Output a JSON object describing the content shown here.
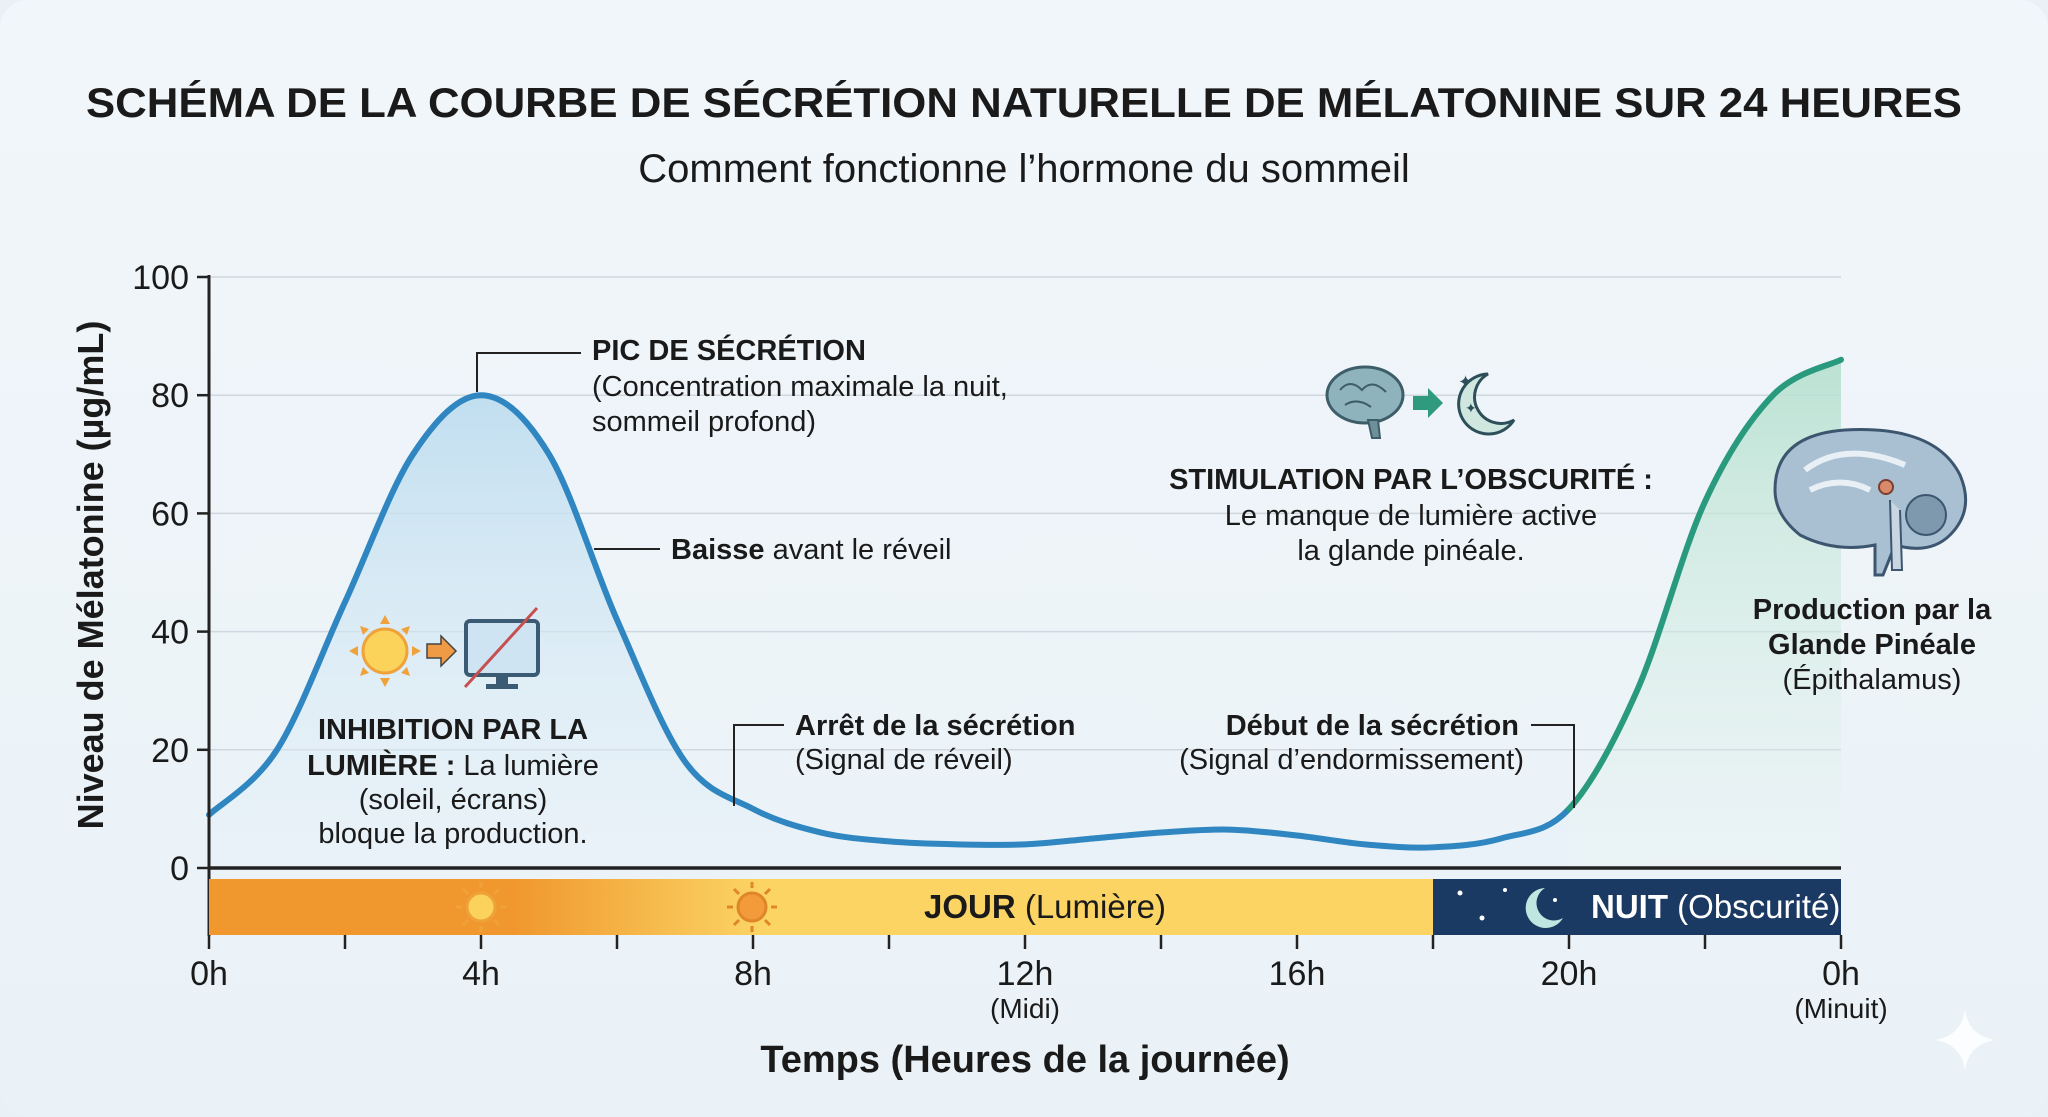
{
  "chart_data": {
    "type": "line",
    "title": "SCHÉMA DE LA COURBE DE SÉCRÉTION NATURELLE DE MÉLATONINE SUR 24 HEURES",
    "subtitle": "Comment fonctionne l’hormone du sommeil",
    "ylabel": "Niveau de Mélatonine (µg/mL)",
    "xlabel": "Temps (Heures de la journée)",
    "ylim": [
      0,
      100
    ],
    "xlim": [
      0,
      24
    ],
    "grid": true,
    "yticks": [
      "0",
      "20",
      "40",
      "60",
      "80",
      "100"
    ],
    "xticks": [
      {
        "label": "0h",
        "sub": ""
      },
      {
        "label": "4h",
        "sub": ""
      },
      {
        "label": "8h",
        "sub": ""
      },
      {
        "label": "12h",
        "sub": "(Midi)"
      },
      {
        "label": "16h",
        "sub": ""
      },
      {
        "label": "20h",
        "sub": ""
      },
      {
        "label": "0h",
        "sub": "(Minuit)"
      }
    ],
    "x": [
      0,
      1,
      2,
      3,
      4,
      5,
      6,
      7,
      8,
      9,
      10,
      11,
      12,
      13,
      14,
      15,
      16,
      17,
      18,
      19,
      20,
      21,
      22,
      23,
      24
    ],
    "y": [
      9,
      20,
      45,
      70,
      80,
      70,
      42,
      18,
      10,
      6,
      4.5,
      4,
      4,
      5,
      6,
      6.5,
      5.5,
      4,
      3.5,
      5,
      10,
      30,
      62,
      80,
      86
    ],
    "segments": [
      {
        "from": 0,
        "to": 20,
        "color": "#2f86c1"
      },
      {
        "from": 20,
        "to": 24,
        "color": "#2a9a7e"
      }
    ],
    "band": {
      "day": {
        "label_bold": "JOUR",
        "label": " (Lumière)",
        "from": 0,
        "to": 18,
        "color_start": "#f0982e",
        "color_end": "#fbd464"
      },
      "night": {
        "label_bold": "NUIT",
        "label": " (Obscurité)",
        "from": 18,
        "to": 24,
        "color": "#1b3a63"
      }
    },
    "annotations": {
      "peak": {
        "title": "PIC DE SÉCRÉTION",
        "line1": "(Concentration maximale la nuit,",
        "line2": "sommeil profond)"
      },
      "decline": {
        "bold": "Baisse",
        "text": " avant le réveil"
      },
      "inhibition": {
        "bold1": "INHIBITION PAR LA",
        "bold2": "LUMIÈRE :",
        "text2": " La lumière",
        "line3": "(soleil, écrans)",
        "line4": "bloque la production."
      },
      "stop": {
        "title": "Arrêt de la sécrétion",
        "sub": "(Signal de réveil)"
      },
      "start": {
        "title": "Début de la sécrétion",
        "sub": "(Signal d’endormissement)"
      },
      "stimulation": {
        "title": "STIMULATION PAR L’OBSCURITÉ :",
        "line1": "Le manque de lumière active",
        "line2": "la glande pinéale."
      },
      "production": {
        "line1": "Production par la",
        "line2": "Glande Pinéale",
        "line3": "(Épithalamus)"
      }
    }
  }
}
